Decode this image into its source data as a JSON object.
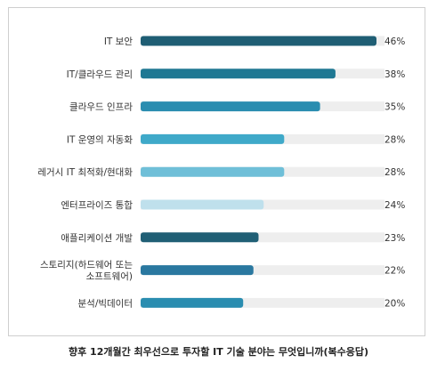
{
  "caption": "향후 12개월간 최우선으로 투자할 IT 기술 분야는 무엇입니까(복수응답)",
  "chart_data": {
    "type": "bar",
    "orientation": "horizontal",
    "categories": [
      [
        "IT 보안"
      ],
      [
        "IT/클라우드 관리"
      ],
      [
        "클라우드 인프라"
      ],
      [
        "IT 운영의 자동화"
      ],
      [
        "레거시 IT 최적화/현대화"
      ],
      [
        "엔터프라이즈 통합"
      ],
      [
        "애플리케이션 개발"
      ],
      [
        "스토리지(하드웨어 또는",
        "소프트웨어)"
      ],
      [
        "분석/빅데이터"
      ]
    ],
    "values": [
      46,
      38,
      35,
      28,
      28,
      24,
      23,
      22,
      20
    ],
    "value_labels": [
      "46%",
      "38%",
      "35%",
      "28%",
      "28%",
      "24%",
      "23%",
      "22%",
      "20%"
    ],
    "xlim": [
      0,
      46
    ],
    "grid": false,
    "colors": [
      "#1f5e74",
      "#1f7893",
      "#2a8db0",
      "#3fa9c9",
      "#6fbfd8",
      "#bfe0ec",
      "#205f75",
      "#2a78a0",
      "#2a8db0"
    ],
    "track_color": "#eeeeee"
  }
}
